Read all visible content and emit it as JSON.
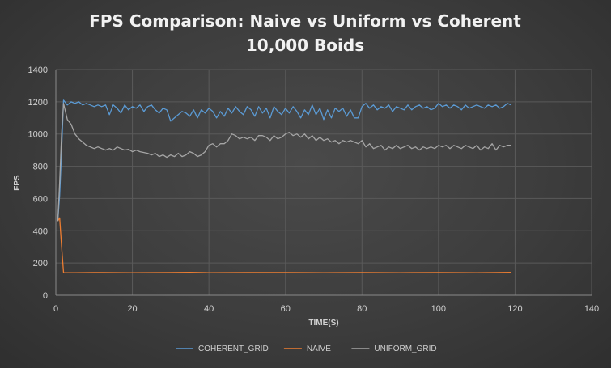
{
  "chart_data": {
    "type": "line",
    "title": [
      "FPS Comparison: Naive vs Uniform vs Coherent",
      "10,000 Boids"
    ],
    "xlabel": "TIME(S)",
    "ylabel": "FPS",
    "xlim": [
      0,
      140
    ],
    "ylim": [
      0,
      1400
    ],
    "xticks": [
      0,
      20,
      40,
      60,
      80,
      100,
      120,
      140
    ],
    "yticks": [
      0,
      200,
      400,
      600,
      800,
      1000,
      1200,
      1400
    ],
    "grid": true,
    "legend": "bottom",
    "series": [
      {
        "name": "COHERENT_GRID",
        "color": "#5b9bd5",
        "points": [
          [
            0.5,
            460
          ],
          [
            1,
            620
          ],
          [
            1.5,
            900
          ],
          [
            2,
            1210
          ],
          [
            3,
            1180
          ],
          [
            4,
            1200
          ],
          [
            5,
            1190
          ],
          [
            6,
            1200
          ],
          [
            7,
            1180
          ],
          [
            8,
            1190
          ],
          [
            9,
            1180
          ],
          [
            10,
            1170
          ],
          [
            11,
            1180
          ],
          [
            12,
            1170
          ],
          [
            13,
            1180
          ],
          [
            14,
            1120
          ],
          [
            15,
            1180
          ],
          [
            16,
            1160
          ],
          [
            17,
            1130
          ],
          [
            18,
            1180
          ],
          [
            19,
            1150
          ],
          [
            20,
            1170
          ],
          [
            21,
            1160
          ],
          [
            22,
            1180
          ],
          [
            23,
            1140
          ],
          [
            24,
            1170
          ],
          [
            25,
            1180
          ],
          [
            26,
            1150
          ],
          [
            27,
            1130
          ],
          [
            28,
            1160
          ],
          [
            29,
            1150
          ],
          [
            30,
            1080
          ],
          [
            31,
            1100
          ],
          [
            32,
            1120
          ],
          [
            33,
            1140
          ],
          [
            34,
            1130
          ],
          [
            35,
            1110
          ],
          [
            36,
            1150
          ],
          [
            37,
            1100
          ],
          [
            38,
            1150
          ],
          [
            39,
            1130
          ],
          [
            40,
            1160
          ],
          [
            41,
            1140
          ],
          [
            42,
            1100
          ],
          [
            43,
            1140
          ],
          [
            44,
            1110
          ],
          [
            45,
            1160
          ],
          [
            46,
            1130
          ],
          [
            47,
            1170
          ],
          [
            48,
            1140
          ],
          [
            49,
            1120
          ],
          [
            50,
            1170
          ],
          [
            51,
            1150
          ],
          [
            52,
            1110
          ],
          [
            53,
            1170
          ],
          [
            54,
            1130
          ],
          [
            55,
            1160
          ],
          [
            56,
            1100
          ],
          [
            57,
            1170
          ],
          [
            58,
            1140
          ],
          [
            59,
            1120
          ],
          [
            60,
            1160
          ],
          [
            61,
            1130
          ],
          [
            62,
            1170
          ],
          [
            63,
            1140
          ],
          [
            64,
            1100
          ],
          [
            65,
            1150
          ],
          [
            66,
            1120
          ],
          [
            67,
            1180
          ],
          [
            68,
            1120
          ],
          [
            69,
            1160
          ],
          [
            70,
            1090
          ],
          [
            71,
            1150
          ],
          [
            72,
            1100
          ],
          [
            73,
            1160
          ],
          [
            74,
            1140
          ],
          [
            75,
            1160
          ],
          [
            76,
            1110
          ],
          [
            77,
            1150
          ],
          [
            78,
            1100
          ],
          [
            79,
            1100
          ],
          [
            80,
            1170
          ],
          [
            81,
            1190
          ],
          [
            82,
            1160
          ],
          [
            83,
            1180
          ],
          [
            84,
            1150
          ],
          [
            85,
            1170
          ],
          [
            86,
            1160
          ],
          [
            87,
            1180
          ],
          [
            88,
            1140
          ],
          [
            89,
            1170
          ],
          [
            90,
            1160
          ],
          [
            91,
            1150
          ],
          [
            92,
            1180
          ],
          [
            93,
            1150
          ],
          [
            94,
            1170
          ],
          [
            95,
            1180
          ],
          [
            96,
            1160
          ],
          [
            97,
            1170
          ],
          [
            98,
            1150
          ],
          [
            99,
            1160
          ],
          [
            100,
            1190
          ],
          [
            101,
            1170
          ],
          [
            102,
            1180
          ],
          [
            103,
            1160
          ],
          [
            104,
            1180
          ],
          [
            105,
            1170
          ],
          [
            106,
            1150
          ],
          [
            107,
            1180
          ],
          [
            108,
            1160
          ],
          [
            109,
            1170
          ],
          [
            110,
            1180
          ],
          [
            111,
            1170
          ],
          [
            112,
            1160
          ],
          [
            113,
            1180
          ],
          [
            114,
            1170
          ],
          [
            115,
            1180
          ],
          [
            116,
            1160
          ],
          [
            117,
            1170
          ],
          [
            118,
            1190
          ],
          [
            119,
            1180
          ]
        ]
      },
      {
        "name": "NAIVE",
        "color": "#ed7d31",
        "points": [
          [
            0.5,
            460
          ],
          [
            1,
            480
          ],
          [
            1.5,
            300
          ],
          [
            2,
            140
          ],
          [
            3,
            140
          ],
          [
            4,
            140
          ],
          [
            5,
            140
          ],
          [
            10,
            141
          ],
          [
            20,
            140
          ],
          [
            30,
            141
          ],
          [
            35,
            142
          ],
          [
            40,
            140
          ],
          [
            50,
            141
          ],
          [
            60,
            141
          ],
          [
            70,
            140
          ],
          [
            80,
            141
          ],
          [
            90,
            140
          ],
          [
            100,
            141
          ],
          [
            110,
            140
          ],
          [
            115,
            141
          ],
          [
            119,
            142
          ]
        ]
      },
      {
        "name": "UNIFORM_GRID",
        "color": "#a5a5a5",
        "points": [
          [
            0.5,
            460
          ],
          [
            1,
            700
          ],
          [
            1.5,
            1000
          ],
          [
            2,
            1190
          ],
          [
            3,
            1090
          ],
          [
            4,
            1060
          ],
          [
            5,
            1000
          ],
          [
            6,
            970
          ],
          [
            7,
            950
          ],
          [
            8,
            930
          ],
          [
            9,
            920
          ],
          [
            10,
            910
          ],
          [
            11,
            920
          ],
          [
            12,
            910
          ],
          [
            13,
            900
          ],
          [
            14,
            910
          ],
          [
            15,
            900
          ],
          [
            16,
            920
          ],
          [
            17,
            910
          ],
          [
            18,
            900
          ],
          [
            19,
            905
          ],
          [
            20,
            890
          ],
          [
            21,
            900
          ],
          [
            22,
            890
          ],
          [
            23,
            885
          ],
          [
            24,
            880
          ],
          [
            25,
            870
          ],
          [
            26,
            880
          ],
          [
            27,
            860
          ],
          [
            28,
            870
          ],
          [
            29,
            855
          ],
          [
            30,
            870
          ],
          [
            31,
            860
          ],
          [
            32,
            880
          ],
          [
            33,
            860
          ],
          [
            34,
            870
          ],
          [
            35,
            890
          ],
          [
            36,
            880
          ],
          [
            37,
            860
          ],
          [
            38,
            870
          ],
          [
            39,
            890
          ],
          [
            40,
            930
          ],
          [
            41,
            940
          ],
          [
            42,
            920
          ],
          [
            43,
            940
          ],
          [
            44,
            940
          ],
          [
            45,
            960
          ],
          [
            46,
            1000
          ],
          [
            47,
            990
          ],
          [
            48,
            970
          ],
          [
            49,
            980
          ],
          [
            50,
            970
          ],
          [
            51,
            980
          ],
          [
            52,
            960
          ],
          [
            53,
            990
          ],
          [
            54,
            990
          ],
          [
            55,
            980
          ],
          [
            56,
            960
          ],
          [
            57,
            990
          ],
          [
            58,
            970
          ],
          [
            59,
            980
          ],
          [
            60,
            1000
          ],
          [
            61,
            1010
          ],
          [
            62,
            990
          ],
          [
            63,
            1000
          ],
          [
            64,
            980
          ],
          [
            65,
            1000
          ],
          [
            66,
            970
          ],
          [
            67,
            990
          ],
          [
            68,
            960
          ],
          [
            69,
            980
          ],
          [
            70,
            960
          ],
          [
            71,
            970
          ],
          [
            72,
            950
          ],
          [
            73,
            960
          ],
          [
            74,
            940
          ],
          [
            75,
            960
          ],
          [
            76,
            950
          ],
          [
            77,
            960
          ],
          [
            78,
            950
          ],
          [
            79,
            940
          ],
          [
            80,
            960
          ],
          [
            81,
            920
          ],
          [
            82,
            940
          ],
          [
            83,
            910
          ],
          [
            84,
            920
          ],
          [
            85,
            930
          ],
          [
            86,
            900
          ],
          [
            87,
            920
          ],
          [
            88,
            910
          ],
          [
            89,
            930
          ],
          [
            90,
            910
          ],
          [
            91,
            920
          ],
          [
            92,
            930
          ],
          [
            93,
            910
          ],
          [
            94,
            920
          ],
          [
            95,
            900
          ],
          [
            96,
            920
          ],
          [
            97,
            910
          ],
          [
            98,
            920
          ],
          [
            99,
            910
          ],
          [
            100,
            930
          ],
          [
            101,
            920
          ],
          [
            102,
            930
          ],
          [
            103,
            910
          ],
          [
            104,
            930
          ],
          [
            105,
            920
          ],
          [
            106,
            910
          ],
          [
            107,
            930
          ],
          [
            108,
            920
          ],
          [
            109,
            910
          ],
          [
            110,
            930
          ],
          [
            111,
            900
          ],
          [
            112,
            920
          ],
          [
            113,
            910
          ],
          [
            114,
            940
          ],
          [
            115,
            900
          ],
          [
            116,
            930
          ],
          [
            117,
            920
          ],
          [
            118,
            930
          ],
          [
            119,
            930
          ]
        ]
      }
    ]
  }
}
